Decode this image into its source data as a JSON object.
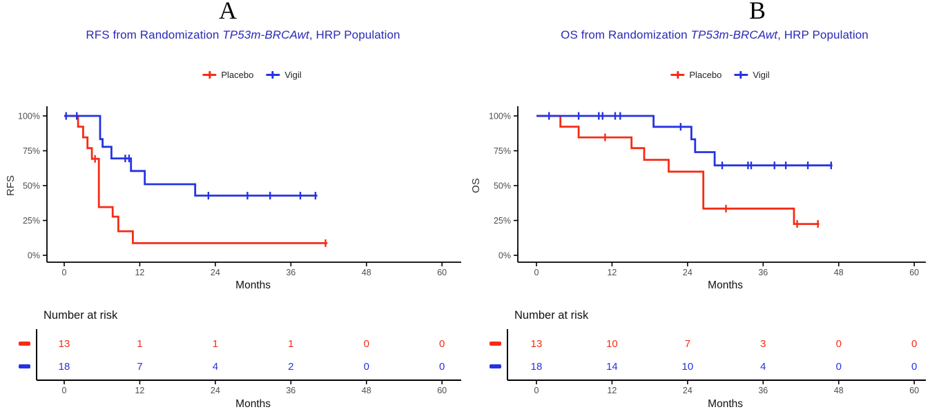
{
  "colors": {
    "placebo": "#F52C16",
    "vigil": "#2533E3",
    "title": "#2A2AB8",
    "axis_text": "#4D4D4D",
    "axis_line": "#000000",
    "text": "#111111",
    "ylabel_text": "#333333"
  },
  "panels": [
    {
      "letter": "A",
      "title_prefix": "RFS from Randomization ",
      "title_italic": "TP53m-BRCAwt",
      "title_suffix": ", HRP Population",
      "legend": [
        {
          "label": "Placebo"
        },
        {
          "label": "Vigil"
        }
      ]
    },
    {
      "letter": "B",
      "title_prefix": "OS from Randomization ",
      "title_italic": "TP53m-BRCAwt",
      "title_suffix": ", HRP Population",
      "legend": [
        {
          "label": "Placebo"
        },
        {
          "label": "Vigil"
        }
      ]
    }
  ],
  "chart_data": [
    {
      "type": "line",
      "subtype": "kaplan-meier-step",
      "title": "RFS from Randomization TP53m-BRCAwt, HRP Population",
      "xlabel": "Months",
      "ylabel": "RFS",
      "xlim": [
        0,
        60
      ],
      "xticks": [
        0,
        12,
        24,
        36,
        48,
        60
      ],
      "ylim": [
        0,
        100
      ],
      "yticks": [
        0,
        25,
        50,
        75,
        100
      ],
      "ytick_labels": [
        "0%",
        "25%",
        "50%",
        "75%",
        "100%"
      ],
      "grid": false,
      "legend_position": "top",
      "series": [
        {
          "name": "Placebo",
          "color": "#F52C16",
          "steps": [
            [
              0,
              100
            ],
            [
              2.2,
              92.3
            ],
            [
              3.0,
              84.6
            ],
            [
              3.7,
              76.9
            ],
            [
              4.4,
              69.2
            ],
            [
              5.5,
              34.6
            ],
            [
              7.7,
              27.7
            ],
            [
              8.6,
              17.3
            ],
            [
              10.9,
              8.7
            ],
            [
              41.8,
              8.7
            ]
          ],
          "censors": [
            [
              4.9,
              69.2
            ],
            [
              41.5,
              8.7
            ]
          ]
        },
        {
          "name": "Vigil",
          "color": "#2533E3",
          "steps": [
            [
              0,
              100
            ],
            [
              5.7,
              83.3
            ],
            [
              6.1,
              77.8
            ],
            [
              7.5,
              69.5
            ],
            [
              10.6,
              60.5
            ],
            [
              12.8,
              51.0
            ],
            [
              20.8,
              42.8
            ],
            [
              40.2,
              42.8
            ]
          ],
          "censors": [
            [
              0.3,
              100
            ],
            [
              2.0,
              100
            ],
            [
              9.7,
              69.5
            ],
            [
              10.3,
              69.5
            ],
            [
              22.9,
              42.8
            ],
            [
              29.1,
              42.8
            ],
            [
              32.7,
              42.8
            ],
            [
              37.5,
              42.8
            ],
            [
              39.9,
              42.8
            ]
          ]
        }
      ],
      "risk_table": {
        "header": "Number at risk",
        "xlabel": "Months",
        "times": [
          0,
          12,
          24,
          36,
          48,
          60
        ],
        "rows": [
          {
            "name": "Placebo",
            "color": "#F52C16",
            "counts": [
              "13",
              "1",
              "1",
              "1",
              "0",
              "0"
            ]
          },
          {
            "name": "Vigil",
            "color": "#2533E3",
            "counts": [
              "18",
              "7",
              "4",
              "2",
              "0",
              "0"
            ]
          }
        ]
      }
    },
    {
      "type": "line",
      "subtype": "kaplan-meier-step",
      "title": "OS from Randomization TP53m-BRCAwt, HRP Population",
      "xlabel": "Months",
      "ylabel": "OS",
      "xlim": [
        0,
        60
      ],
      "xticks": [
        0,
        12,
        24,
        36,
        48,
        60
      ],
      "ylim": [
        0,
        100
      ],
      "yticks": [
        0,
        25,
        50,
        75,
        100
      ],
      "ytick_labels": [
        "0%",
        "25%",
        "50%",
        "75%",
        "100%"
      ],
      "grid": false,
      "legend_position": "top",
      "series": [
        {
          "name": "Placebo",
          "color": "#F52C16",
          "steps": [
            [
              0,
              100
            ],
            [
              3.8,
              92.3
            ],
            [
              6.7,
              84.6
            ],
            [
              15.1,
              76.9
            ],
            [
              17.1,
              68.5
            ],
            [
              21.0,
              60.0
            ],
            [
              26.5,
              33.5
            ],
            [
              40.9,
              22.5
            ],
            [
              44.9,
              22.5
            ]
          ],
          "censors": [
            [
              10.9,
              84.6
            ],
            [
              30.1,
              33.5
            ],
            [
              41.4,
              22.5
            ],
            [
              44.7,
              22.5
            ]
          ]
        },
        {
          "name": "Vigil",
          "color": "#2533E3",
          "steps": [
            [
              0,
              100
            ],
            [
              18.6,
              92.2
            ],
            [
              24.6,
              83.2
            ],
            [
              25.2,
              74.0
            ],
            [
              28.3,
              64.5
            ],
            [
              47.0,
              64.5
            ]
          ],
          "censors": [
            [
              2.0,
              100
            ],
            [
              6.7,
              100
            ],
            [
              9.9,
              100
            ],
            [
              10.5,
              100
            ],
            [
              12.5,
              100
            ],
            [
              13.3,
              100
            ],
            [
              22.9,
              92.2
            ],
            [
              29.5,
              64.5
            ],
            [
              33.6,
              64.5
            ],
            [
              34.1,
              64.5
            ],
            [
              37.8,
              64.5
            ],
            [
              39.6,
              64.5
            ],
            [
              43.1,
              64.5
            ],
            [
              46.8,
              64.5
            ]
          ]
        }
      ],
      "risk_table": {
        "header": "Number at risk",
        "xlabel": "Months",
        "times": [
          0,
          12,
          24,
          36,
          48,
          60
        ],
        "rows": [
          {
            "name": "Placebo",
            "color": "#F52C16",
            "counts": [
              "13",
              "10",
              "7",
              "3",
              "0",
              "0"
            ]
          },
          {
            "name": "Vigil",
            "color": "#2533E3",
            "counts": [
              "18",
              "14",
              "10",
              "4",
              "0",
              "0"
            ]
          }
        ]
      }
    }
  ]
}
